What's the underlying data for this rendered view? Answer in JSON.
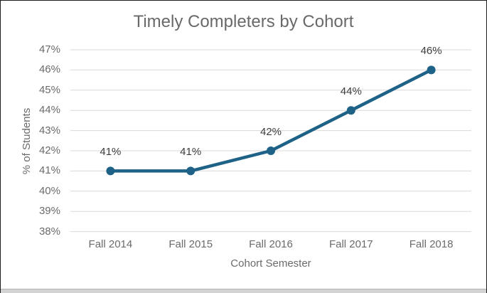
{
  "chart_data": {
    "type": "line",
    "title": "Timely Completers by Cohort",
    "xlabel": "Cohort Semester",
    "ylabel": "% of Students",
    "categories": [
      "Fall 2014",
      "Fall 2015",
      "Fall 2016",
      "Fall 2017",
      "Fall 2018"
    ],
    "series": [
      {
        "values": [
          41,
          41,
          42,
          44,
          46
        ],
        "data_labels": [
          "41%",
          "41%",
          "42%",
          "44%",
          "46%"
        ],
        "color": "#1F6287",
        "marker": "circle"
      }
    ],
    "ylim": [
      38,
      47
    ],
    "ytick_step": 1,
    "ytick_labels": [
      "38%",
      "39%",
      "40%",
      "41%",
      "42%",
      "43%",
      "44%",
      "45%",
      "46%",
      "47%"
    ],
    "grid": true,
    "legend": "none"
  },
  "colors": {
    "line": "#1F6287",
    "gridline": "#D9D9D9",
    "axis_text": "#6B6B6B",
    "title_text": "#696969",
    "data_label_text": "#3D3D3D",
    "window_border": "#1C1C1C",
    "bottom_bar": "#D3D3D3"
  }
}
